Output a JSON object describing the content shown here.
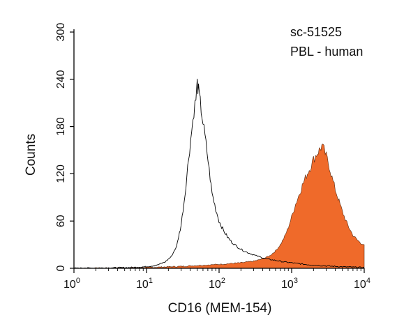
{
  "chart_data": {
    "type": "area",
    "annotations": [
      "sc-51525",
      "PBL - human"
    ],
    "xlabel": "CD16 (MEM-154)",
    "ylabel": "Counts",
    "x_scale": "log",
    "xlim": [
      1,
      10000
    ],
    "ylim": [
      0,
      300
    ],
    "x_ticks": [
      {
        "base": "10",
        "exp": "0",
        "value": 1
      },
      {
        "base": "10",
        "exp": "1",
        "value": 10
      },
      {
        "base": "10",
        "exp": "2",
        "value": 100
      },
      {
        "base": "10",
        "exp": "3",
        "value": 1000
      },
      {
        "base": "10",
        "exp": "4",
        "value": 10000
      }
    ],
    "y_ticks": [
      0,
      60,
      120,
      180,
      240,
      300
    ],
    "grid": false,
    "colors": {
      "control": "#000000",
      "stained": "#ef6a2a",
      "axis": "#000000"
    },
    "series": [
      {
        "style": "outline",
        "points": [
          [
            1,
            0
          ],
          [
            3,
            0.5
          ],
          [
            6,
            1
          ],
          [
            10,
            2
          ],
          [
            14,
            4
          ],
          [
            18,
            8
          ],
          [
            22,
            15
          ],
          [
            26,
            28
          ],
          [
            30,
            55
          ],
          [
            34,
            95
          ],
          [
            38,
            140
          ],
          [
            42,
            175
          ],
          [
            45,
            200
          ],
          [
            48,
            215
          ],
          [
            50,
            235
          ],
          [
            52,
            225
          ],
          [
            55,
            210
          ],
          [
            60,
            185
          ],
          [
            66,
            158
          ],
          [
            73,
            125
          ],
          [
            80,
            95
          ],
          [
            90,
            75
          ],
          [
            100,
            60
          ],
          [
            115,
            48
          ],
          [
            130,
            40
          ],
          [
            150,
            33
          ],
          [
            180,
            27
          ],
          [
            220,
            22
          ],
          [
            280,
            18
          ],
          [
            350,
            15
          ],
          [
            450,
            12
          ],
          [
            600,
            10
          ],
          [
            800,
            8
          ],
          [
            1000,
            7
          ],
          [
            1500,
            5
          ],
          [
            2000,
            4
          ],
          [
            3000,
            3
          ],
          [
            5000,
            2
          ],
          [
            7000,
            1.5
          ],
          [
            10000,
            1
          ]
        ]
      },
      {
        "style": "filled",
        "points": [
          [
            1,
            0
          ],
          [
            5,
            0.5
          ],
          [
            15,
            1.5
          ],
          [
            30,
            2.5
          ],
          [
            60,
            4
          ],
          [
            100,
            5
          ],
          [
            200,
            7
          ],
          [
            300,
            9
          ],
          [
            400,
            12
          ],
          [
            500,
            16
          ],
          [
            600,
            22
          ],
          [
            700,
            30
          ],
          [
            800,
            40
          ],
          [
            900,
            52
          ],
          [
            1000,
            65
          ],
          [
            1100,
            78
          ],
          [
            1250,
            92
          ],
          [
            1400,
            105
          ],
          [
            1600,
            118
          ],
          [
            1800,
            128
          ],
          [
            2000,
            138
          ],
          [
            2200,
            145
          ],
          [
            2400,
            150
          ],
          [
            2600,
            155
          ],
          [
            2800,
            150
          ],
          [
            3000,
            142
          ],
          [
            3300,
            130
          ],
          [
            3600,
            115
          ],
          [
            4000,
            100
          ],
          [
            4500,
            85
          ],
          [
            5000,
            72
          ],
          [
            5600,
            60
          ],
          [
            6300,
            50
          ],
          [
            7000,
            42
          ],
          [
            8000,
            36
          ],
          [
            9000,
            32
          ],
          [
            10000,
            30
          ]
        ]
      }
    ]
  }
}
